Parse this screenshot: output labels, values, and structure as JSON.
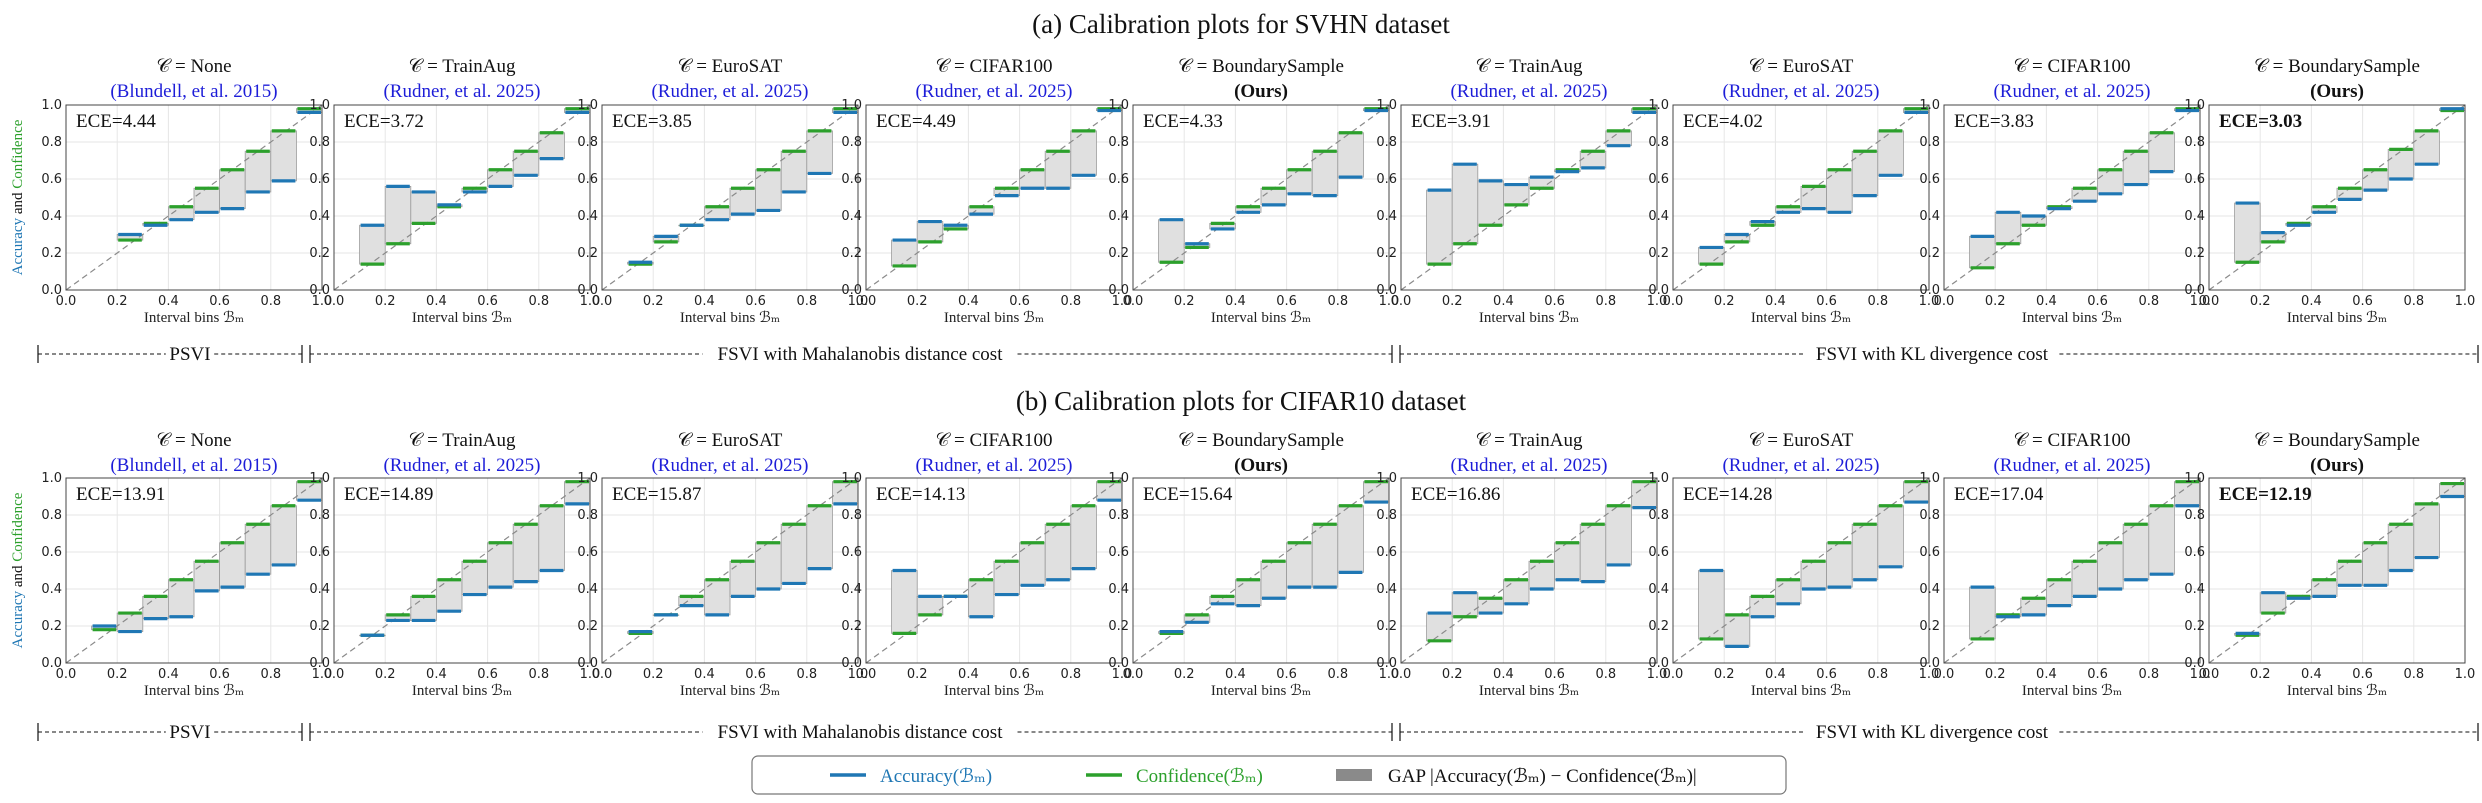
{
  "figure": {
    "group_labels": [
      "PSVI",
      "FSVI with Mahalanobis distance cost",
      "FSVI with KL divergence cost"
    ],
    "ylabel": {
      "part1": "Accuracy",
      "part2": " and ",
      "part3": "Confidence"
    },
    "xlabel": "Interval bins ℬₘ",
    "ticks": [
      "0.0",
      "0.2",
      "0.4",
      "0.6",
      "0.8",
      "1.0"
    ],
    "legend": {
      "accuracy": "Accuracy(ℬₘ)",
      "confidence": "Confidence(ℬₘ)",
      "gap": "GAP |Accuracy(ℬₘ) − Confidence(ℬₘ)|"
    },
    "colors": {
      "accuracy": "#1f77b4",
      "confidence": "#2ca02c",
      "gap": "#e0e0e0",
      "citation": "#1d1dd8"
    }
  },
  "chart_data": [
    {
      "type": "bar",
      "title": "(a) Calibration plots for SVHN dataset",
      "subplots": [
        {
          "title": "𝒞 = None",
          "subtitle": "(Blundell, et al. 2015)",
          "ece": "ECE=4.44",
          "ece_bold": false,
          "accuracy": [
            null,
            null,
            0.3,
            0.35,
            0.38,
            0.42,
            0.44,
            0.53,
            0.59,
            0.96
          ],
          "confidence": [
            null,
            null,
            0.27,
            0.36,
            0.45,
            0.55,
            0.65,
            0.75,
            0.86,
            0.98
          ]
        },
        {
          "title": "𝒞 = TrainAug",
          "subtitle": "(Rudner, et al. 2025)",
          "ece": "ECE=3.72",
          "ece_bold": false,
          "accuracy": [
            null,
            0.35,
            0.56,
            0.53,
            0.46,
            0.53,
            0.56,
            0.62,
            0.71,
            0.96
          ],
          "confidence": [
            null,
            0.14,
            0.25,
            0.36,
            0.45,
            0.55,
            0.65,
            0.75,
            0.85,
            0.98
          ]
        },
        {
          "title": "𝒞 = EuroSAT",
          "subtitle": "(Rudner, et al. 2025)",
          "ece": "ECE=3.85",
          "ece_bold": false,
          "accuracy": [
            null,
            0.15,
            0.29,
            0.35,
            0.38,
            0.41,
            0.43,
            0.53,
            0.63,
            0.96
          ],
          "confidence": [
            null,
            0.14,
            0.26,
            0.35,
            0.45,
            0.55,
            0.65,
            0.75,
            0.86,
            0.98
          ]
        },
        {
          "title": "𝒞 = CIFAR100",
          "subtitle": "(Rudner, et al. 2025)",
          "ece": "ECE=4.49",
          "ece_bold": false,
          "accuracy": [
            null,
            0.27,
            0.37,
            0.35,
            0.41,
            0.51,
            0.55,
            0.55,
            0.62,
            0.97
          ],
          "confidence": [
            null,
            0.13,
            0.26,
            0.33,
            0.45,
            0.55,
            0.65,
            0.75,
            0.86,
            0.98
          ]
        },
        {
          "title": "𝒞 = BoundarySample",
          "subtitle": "(Ours)",
          "ece": "ECE=4.33",
          "ece_bold": false,
          "accuracy": [
            null,
            0.38,
            0.25,
            0.33,
            0.42,
            0.46,
            0.52,
            0.51,
            0.61,
            0.97
          ],
          "confidence": [
            null,
            0.15,
            0.23,
            0.36,
            0.45,
            0.55,
            0.65,
            0.75,
            0.85,
            0.98
          ]
        },
        {
          "title": "𝒞 = TrainAug",
          "subtitle": "(Rudner, et al. 2025)",
          "ece": "ECE=3.91",
          "ece_bold": false,
          "accuracy": [
            null,
            0.54,
            0.68,
            0.59,
            0.57,
            0.61,
            0.64,
            0.66,
            0.78,
            0.96
          ],
          "confidence": [
            null,
            0.14,
            0.25,
            0.35,
            0.46,
            0.55,
            0.65,
            0.75,
            0.86,
            0.98
          ]
        },
        {
          "title": "𝒞 = EuroSAT",
          "subtitle": "(Rudner, et al. 2025)",
          "ece": "ECE=4.02",
          "ece_bold": false,
          "accuracy": [
            null,
            0.23,
            0.3,
            0.37,
            0.42,
            0.44,
            0.42,
            0.51,
            0.62,
            0.96
          ],
          "confidence": [
            null,
            0.14,
            0.26,
            0.35,
            0.45,
            0.56,
            0.65,
            0.75,
            0.86,
            0.98
          ]
        },
        {
          "title": "𝒞 = CIFAR100",
          "subtitle": "(Rudner, et al. 2025)",
          "ece": "ECE=3.83",
          "ece_bold": false,
          "accuracy": [
            null,
            0.29,
            0.42,
            0.4,
            0.44,
            0.48,
            0.52,
            0.57,
            0.64,
            0.97
          ],
          "confidence": [
            null,
            0.12,
            0.25,
            0.35,
            0.45,
            0.55,
            0.65,
            0.75,
            0.85,
            0.98
          ]
        },
        {
          "title": "𝒞 = BoundarySample",
          "subtitle": "(Ours)",
          "ece": "ECE=3.03",
          "ece_bold": true,
          "accuracy": [
            null,
            0.47,
            0.31,
            0.35,
            0.42,
            0.49,
            0.54,
            0.6,
            0.68,
            0.98
          ],
          "confidence": [
            null,
            0.15,
            0.26,
            0.36,
            0.45,
            0.55,
            0.65,
            0.76,
            0.86,
            0.97
          ]
        }
      ]
    },
    {
      "type": "bar",
      "title": "(b) Calibration plots for CIFAR10 dataset",
      "subplots": [
        {
          "title": "𝒞 = None",
          "subtitle": "(Blundell, et al. 2015)",
          "ece": "ECE=13.91",
          "ece_bold": false,
          "accuracy": [
            null,
            0.2,
            0.17,
            0.24,
            0.25,
            0.39,
            0.41,
            0.48,
            0.53,
            0.88
          ],
          "confidence": [
            null,
            0.18,
            0.27,
            0.36,
            0.45,
            0.55,
            0.65,
            0.75,
            0.85,
            0.98
          ]
        },
        {
          "title": "𝒞 = TrainAug",
          "subtitle": "(Rudner, et al. 2025)",
          "ece": "ECE=14.89",
          "ece_bold": false,
          "accuracy": [
            null,
            0.15,
            0.23,
            0.23,
            0.28,
            0.37,
            0.41,
            0.44,
            0.5,
            0.86
          ],
          "confidence": [
            null,
            0.15,
            0.26,
            0.36,
            0.45,
            0.55,
            0.65,
            0.75,
            0.85,
            0.98
          ]
        },
        {
          "title": "𝒞 = EuroSAT",
          "subtitle": "(Rudner, et al. 2025)",
          "ece": "ECE=15.87",
          "ece_bold": false,
          "accuracy": [
            null,
            0.17,
            0.26,
            0.31,
            0.26,
            0.36,
            0.4,
            0.43,
            0.51,
            0.86
          ],
          "confidence": [
            null,
            0.16,
            0.26,
            0.36,
            0.45,
            0.55,
            0.65,
            0.75,
            0.85,
            0.98
          ]
        },
        {
          "title": "𝒞 = CIFAR100",
          "subtitle": "(Rudner, et al. 2025)",
          "ece": "ECE=14.13",
          "ece_bold": false,
          "accuracy": [
            null,
            0.5,
            0.36,
            0.36,
            0.25,
            0.37,
            0.42,
            0.45,
            0.51,
            0.88
          ],
          "confidence": [
            null,
            0.16,
            0.26,
            0.36,
            0.45,
            0.55,
            0.65,
            0.75,
            0.85,
            0.98
          ]
        },
        {
          "title": "𝒞 = BoundarySample",
          "subtitle": "(Ours)",
          "ece": "ECE=15.64",
          "ece_bold": false,
          "accuracy": [
            null,
            0.17,
            0.22,
            0.32,
            0.31,
            0.35,
            0.41,
            0.41,
            0.49,
            0.87
          ],
          "confidence": [
            null,
            0.16,
            0.26,
            0.36,
            0.45,
            0.55,
            0.65,
            0.75,
            0.85,
            0.98
          ]
        },
        {
          "title": "𝒞 = TrainAug",
          "subtitle": "(Rudner, et al. 2025)",
          "ece": "ECE=16.86",
          "ece_bold": false,
          "accuracy": [
            null,
            0.27,
            0.38,
            0.27,
            0.32,
            0.4,
            0.45,
            0.44,
            0.53,
            0.84
          ],
          "confidence": [
            null,
            0.12,
            0.25,
            0.35,
            0.45,
            0.55,
            0.65,
            0.75,
            0.85,
            0.98
          ]
        },
        {
          "title": "𝒞 = EuroSAT",
          "subtitle": "(Rudner, et al. 2025)",
          "ece": "ECE=14.28",
          "ece_bold": false,
          "accuracy": [
            null,
            0.5,
            0.09,
            0.25,
            0.32,
            0.4,
            0.41,
            0.45,
            0.52,
            0.87
          ],
          "confidence": [
            null,
            0.13,
            0.26,
            0.36,
            0.45,
            0.55,
            0.65,
            0.75,
            0.85,
            0.98
          ]
        },
        {
          "title": "𝒞 = CIFAR100",
          "subtitle": "(Rudner, et al. 2025)",
          "ece": "ECE=17.04",
          "ece_bold": false,
          "accuracy": [
            null,
            0.41,
            0.25,
            0.26,
            0.31,
            0.36,
            0.4,
            0.45,
            0.48,
            0.85
          ],
          "confidence": [
            null,
            0.13,
            0.26,
            0.35,
            0.45,
            0.55,
            0.65,
            0.75,
            0.85,
            0.98
          ]
        },
        {
          "title": "𝒞 = BoundarySample",
          "subtitle": "(Ours)",
          "ece": "ECE=12.19",
          "ece_bold": true,
          "accuracy": [
            null,
            0.16,
            0.38,
            0.35,
            0.36,
            0.42,
            0.42,
            0.5,
            0.57,
            0.9
          ],
          "confidence": [
            null,
            0.15,
            0.27,
            0.36,
            0.45,
            0.55,
            0.65,
            0.75,
            0.86,
            0.97
          ]
        }
      ]
    }
  ]
}
